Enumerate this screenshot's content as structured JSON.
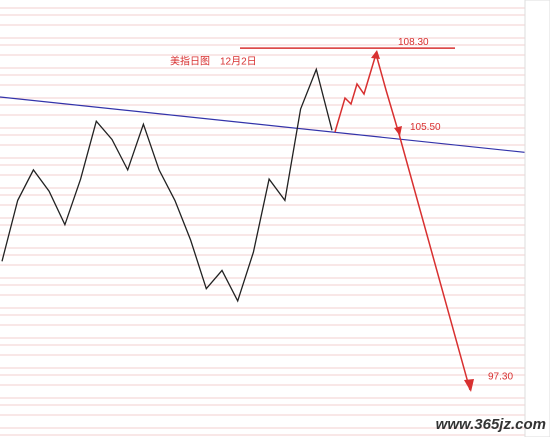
{
  "chart_data": {
    "type": "line",
    "title": "美指日图　12月2日",
    "categories": [
      null,
      null,
      null,
      null,
      null,
      null,
      null,
      null,
      null,
      null,
      null,
      null,
      null,
      null,
      null,
      null,
      null,
      null,
      null,
      null,
      null,
      null
    ],
    "values": [
      101.3,
      103.3,
      104.3,
      103.6,
      102.5,
      104.0,
      105.9,
      105.3,
      104.3,
      105.8,
      104.3,
      103.3,
      102.0,
      100.4,
      101.0,
      100.0,
      101.6,
      104.0,
      103.3,
      106.3,
      107.6,
      105.6
    ],
    "color": "#222222",
    "ylim": [
      95.53,
      109.88
    ],
    "levels": [
      {
        "value": 108.3,
        "label": "108.30"
      },
      {
        "value": 105.5,
        "label": "105.50"
      },
      {
        "value": 97.3,
        "label": "97.30"
      }
    ],
    "level_color": "#d83030",
    "watermark": "www.365jz.com"
  }
}
